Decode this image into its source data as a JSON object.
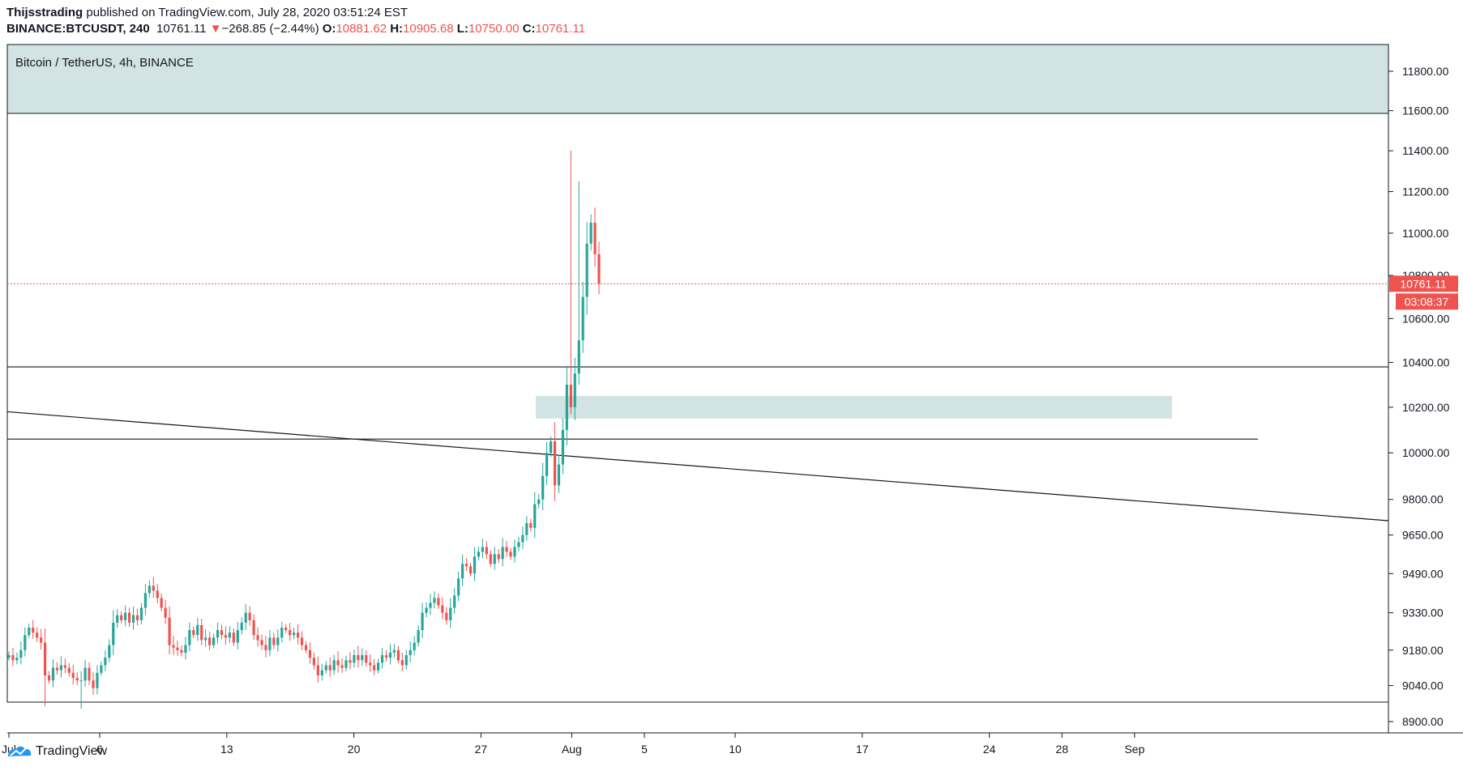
{
  "header": {
    "author": "Thijsstrading",
    "published_text": " published on TradingView.com, July 28, 2020 03:51:24 EST",
    "symbol": "BINANCE:BTCUSDT, 240",
    "last": "10761.11",
    "change_arrow": "▼",
    "change": "−268.85 (−2.44%)",
    "o_label": "O:",
    "o_value": "10881.62",
    "h_label": "H:",
    "h_value": "10905.68",
    "l_label": "L:",
    "l_value": "10750.00",
    "c_label": "C:",
    "c_value": "10761.11"
  },
  "pane_title": "Bitcoin / TetherUS, 4h, BINANCE",
  "footer": {
    "brand": "TradingView",
    "logo_icon": "tradingview-logo-icon"
  },
  "colors": {
    "up": "#26a69a",
    "down": "#ef5350",
    "zone": "#d2e3e4",
    "line": "#131722",
    "price_tag": "#ef5350"
  },
  "chart_data": {
    "type": "candlestick",
    "symbol": "BTCUSDT",
    "interval": "4h",
    "log_scale": true,
    "y_ticks": [
      11800,
      11600,
      11400,
      11200,
      11000,
      10800,
      10600,
      10400,
      10200,
      10000,
      9800,
      9650,
      9490,
      9330,
      9180,
      9040,
      8900
    ],
    "y_tick_labels": [
      "11800.00",
      "11600.00",
      "11400.00",
      "11200.00",
      "11000.00",
      "10800.00",
      "10600.00",
      "10400.00",
      "10200.00",
      "10000.00",
      "9800.00",
      "9650.00",
      "9490.00",
      "9330.00",
      "9180.00",
      "9040.00",
      "8900.00"
    ],
    "x_ticks": [
      {
        "label": "Jul",
        "day": 1
      },
      {
        "label": "6",
        "day": 6
      },
      {
        "label": "13",
        "day": 13
      },
      {
        "label": "20",
        "day": 20
      },
      {
        "label": "27",
        "day": 27
      },
      {
        "label": "Aug",
        "day": 32
      },
      {
        "label": "5",
        "day": 36
      },
      {
        "label": "10",
        "day": 41
      },
      {
        "label": "17",
        "day": 48
      },
      {
        "label": "24",
        "day": 55
      },
      {
        "label": "28",
        "day": 59
      },
      {
        "label": "Sep",
        "day": 63
      }
    ],
    "last_price": "10761.11",
    "countdown": "03:08:37",
    "closes": [
      9160,
      9140,
      9150,
      9180,
      9240,
      9270,
      9250,
      9230,
      9210,
      9080,
      9060,
      9110,
      9100,
      9120,
      9110,
      9090,
      9070,
      9060,
      9060,
      9110,
      9060,
      9030,
      9090,
      9120,
      9150,
      9200,
      9290,
      9320,
      9300,
      9330,
      9290,
      9320,
      9300,
      9350,
      9410,
      9440,
      9420,
      9390,
      9350,
      9310,
      9200,
      9190,
      9180,
      9170,
      9200,
      9260,
      9240,
      9280,
      9220,
      9230,
      9200,
      9230,
      9260,
      9240,
      9230,
      9250,
      9210,
      9260,
      9290,
      9330,
      9300,
      9240,
      9220,
      9200,
      9180,
      9230,
      9200,
      9230,
      9270,
      9260,
      9240,
      9250,
      9230,
      9200,
      9180,
      9150,
      9120,
      9080,
      9100,
      9120,
      9100,
      9140,
      9120,
      9110,
      9140,
      9130,
      9160,
      9140,
      9160,
      9130,
      9120,
      9100,
      9130,
      9160,
      9150,
      9170,
      9180,
      9140,
      9120,
      9160,
      9180,
      9210,
      9260,
      9330,
      9350,
      9370,
      9390,
      9360,
      9330,
      9300,
      9350,
      9400,
      9470,
      9530,
      9520,
      9490,
      9560,
      9580,
      9600,
      9570,
      9530,
      9570,
      9550,
      9600,
      9580,
      9560,
      9600,
      9620,
      9650,
      9700,
      9680,
      9780,
      9800,
      9900,
      10000,
      10050,
      9860,
      9950,
      10100,
      10300,
      10200,
      10350,
      10500,
      10700,
      10950,
      11050,
      10900,
      10761
    ]
  }
}
